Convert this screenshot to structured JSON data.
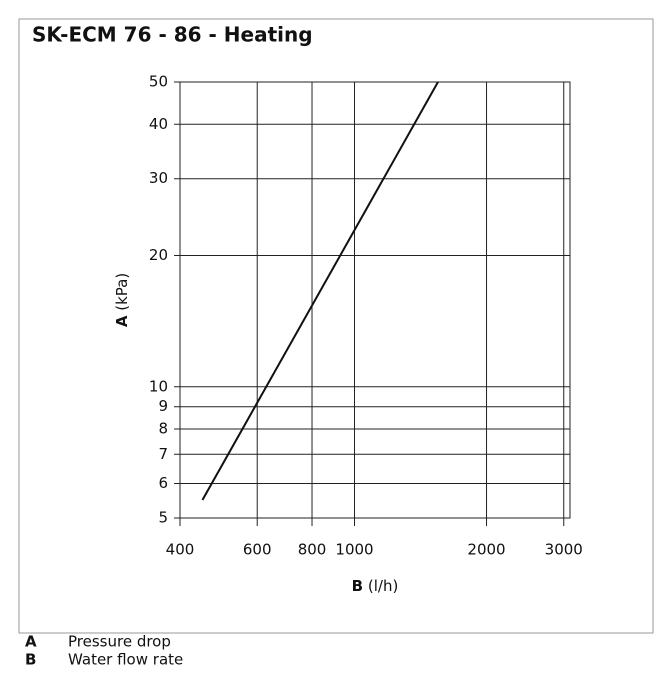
{
  "chart_data": {
    "type": "line",
    "title": "SK-ECM 76 - 86 - Heating",
    "xlabel": {
      "letter": "B",
      "unit": "(l/h)"
    },
    "ylabel": {
      "letter": "A",
      "unit": "(kPa)"
    },
    "log_x": true,
    "log_y": true,
    "grid": true,
    "xlim": [
      400,
      3100
    ],
    "ylim": [
      5,
      50
    ],
    "xticks": [
      400,
      600,
      800,
      1000,
      2000,
      3000
    ],
    "yticks": [
      5,
      6,
      7,
      8,
      9,
      10,
      20,
      30,
      40,
      50
    ],
    "series": [
      {
        "color": "#111111",
        "x": [
          450,
          1550
        ],
        "values": [
          5.5,
          50
        ]
      }
    ]
  },
  "legend": [
    {
      "letter": "A",
      "text": "Pressure drop"
    },
    {
      "letter": "B",
      "text": "Water flow rate"
    }
  ]
}
